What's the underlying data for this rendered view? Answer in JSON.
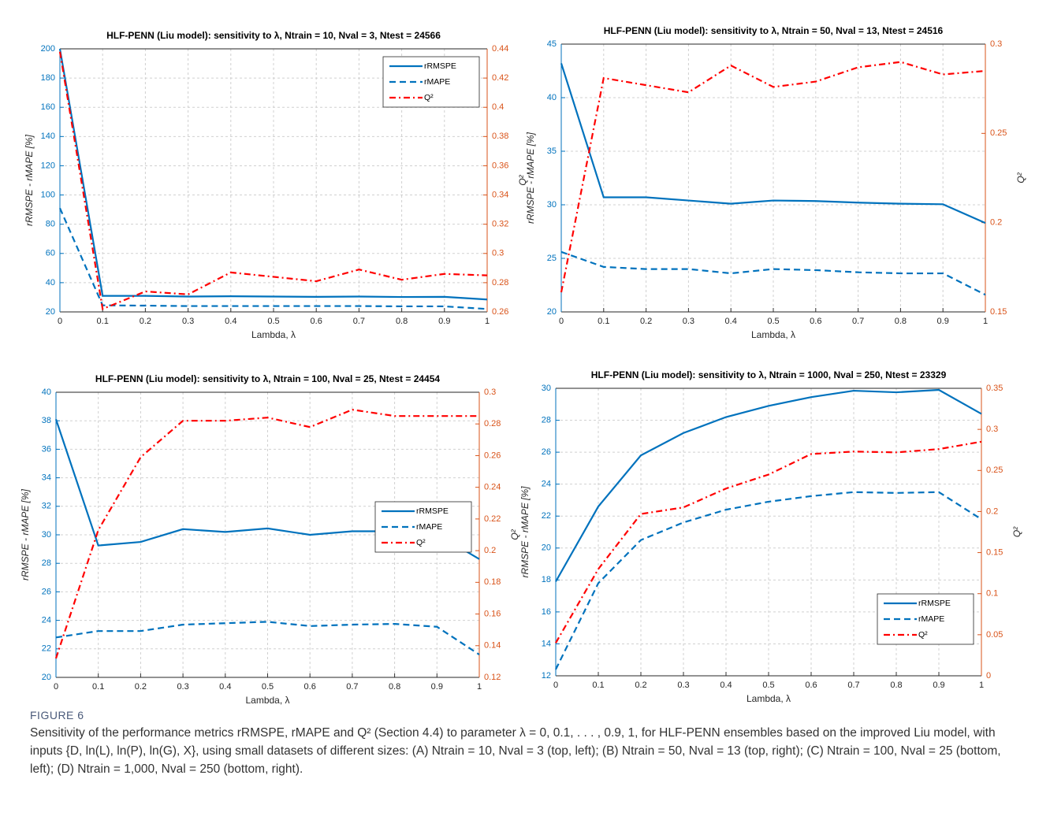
{
  "chart_data": [
    {
      "type": "line",
      "title": "HLF-PENN (Liu model): sensitivity to λ, Ntrain = 10, Nval = 3, Ntest = 24566",
      "x_label": "Lambda, λ",
      "y_label": "rRMSPE - rMAPE [%]",
      "y2_label": "Q²",
      "x": [
        0,
        0.1,
        0.2,
        0.3,
        0.4,
        0.5,
        0.6,
        0.7,
        0.8,
        0.9,
        1
      ],
      "xlim": [
        0,
        1
      ],
      "xticks": [
        0,
        0.1,
        0.2,
        0.3,
        0.4,
        0.5,
        0.6,
        0.7,
        0.8,
        0.9,
        1
      ],
      "ylim": [
        20,
        200
      ],
      "yticks": [
        20,
        40,
        60,
        80,
        100,
        120,
        140,
        160,
        180,
        200
      ],
      "y2lim": [
        0.26,
        0.44
      ],
      "y2ticks": [
        0.26,
        0.28,
        0.3,
        0.32,
        0.34,
        0.36,
        0.38,
        0.4,
        0.42,
        0.44
      ],
      "grid": true,
      "legend": "upper right",
      "series": [
        {
          "name": "rRMSPE",
          "color": "#0072bd",
          "style": "solid",
          "values": [
            200,
            31,
            31,
            30.5,
            30.7,
            30.5,
            30.3,
            30.5,
            30.2,
            30.3,
            28.5
          ]
        },
        {
          "name": "rMAPE",
          "color": "#0072bd",
          "style": "dashed",
          "values": [
            91,
            24.5,
            24.3,
            24,
            24,
            24,
            24,
            24,
            23.8,
            23.8,
            22
          ]
        },
        {
          "name": "Q²",
          "color": "#ff0000",
          "style": "dashdot",
          "axis": "y2",
          "values": [
            0.438,
            0.262,
            0.274,
            0.272,
            0.287,
            0.284,
            0.281,
            0.289,
            0.282,
            0.286,
            0.285
          ]
        }
      ]
    },
    {
      "type": "line",
      "title": "HLF-PENN (Liu model): sensitivity to λ, Ntrain = 50, Nval = 13, Ntest = 24516",
      "x_label": "Lambda, λ",
      "y_label": "rRMSPE - rMAPE [%]",
      "y2_label": "Q²",
      "x": [
        0,
        0.1,
        0.2,
        0.3,
        0.4,
        0.5,
        0.6,
        0.7,
        0.8,
        0.9,
        1
      ],
      "xlim": [
        0,
        1
      ],
      "xticks": [
        0,
        0.1,
        0.2,
        0.3,
        0.4,
        0.5,
        0.6,
        0.7,
        0.8,
        0.9,
        1
      ],
      "ylim": [
        20,
        45
      ],
      "yticks": [
        20,
        25,
        30,
        35,
        40,
        45
      ],
      "y2lim": [
        0.15,
        0.3
      ],
      "y2ticks": [
        0.15,
        0.2,
        0.25,
        0.3
      ],
      "grid": true,
      "series": [
        {
          "name": "rRMSPE",
          "color": "#0072bd",
          "style": "solid",
          "values": [
            43.2,
            30.7,
            30.7,
            30.4,
            30.1,
            30.4,
            30.35,
            30.2,
            30.1,
            30.05,
            28.3
          ]
        },
        {
          "name": "rMAPE",
          "color": "#0072bd",
          "style": "dashed",
          "values": [
            25.6,
            24.2,
            24,
            24,
            23.6,
            24,
            23.9,
            23.7,
            23.6,
            23.6,
            21.6
          ]
        },
        {
          "name": "Q²",
          "color": "#ff0000",
          "style": "dashdot",
          "axis": "y2",
          "values": [
            0.161,
            0.281,
            0.277,
            0.273,
            0.288,
            0.276,
            0.279,
            0.287,
            0.29,
            0.283,
            0.285
          ]
        }
      ]
    },
    {
      "type": "line",
      "title": "HLF-PENN (Liu model): sensitivity to λ, Ntrain = 100, Nval = 25, Ntest = 24454",
      "x_label": "Lambda, λ",
      "y_label": "rRMSPE - rMAPE [%]",
      "y2_label": "Q²",
      "x": [
        0,
        0.1,
        0.2,
        0.3,
        0.4,
        0.5,
        0.6,
        0.7,
        0.8,
        0.9,
        1
      ],
      "xlim": [
        0,
        1
      ],
      "xticks": [
        0,
        0.1,
        0.2,
        0.3,
        0.4,
        0.5,
        0.6,
        0.7,
        0.8,
        0.9,
        1
      ],
      "ylim": [
        20,
        40
      ],
      "yticks": [
        20,
        22,
        24,
        26,
        28,
        30,
        32,
        34,
        36,
        38,
        40
      ],
      "y2lim": [
        0.12,
        0.3
      ],
      "y2ticks": [
        0.12,
        0.14,
        0.16,
        0.18,
        0.2,
        0.22,
        0.24,
        0.26,
        0.28,
        0.3
      ],
      "grid": true,
      "legend": "center right",
      "series": [
        {
          "name": "rRMSPE",
          "color": "#0072bd",
          "style": "solid",
          "values": [
            38.1,
            29.25,
            29.5,
            30.4,
            30.2,
            30.45,
            30,
            30.25,
            30.25,
            30.05,
            28.3
          ]
        },
        {
          "name": "rMAPE",
          "color": "#0072bd",
          "style": "dashed",
          "values": [
            22.8,
            23.25,
            23.25,
            23.7,
            23.8,
            23.9,
            23.6,
            23.7,
            23.75,
            23.55,
            21.6
          ]
        },
        {
          "name": "Q²",
          "color": "#ff0000",
          "style": "dashdot",
          "axis": "y2",
          "values": [
            0.132,
            0.213,
            0.259,
            0.282,
            0.282,
            0.284,
            0.278,
            0.289,
            0.285,
            0.285,
            0.285
          ]
        }
      ]
    },
    {
      "type": "line",
      "title": "HLF-PENN (Liu model): sensitivity to λ, Ntrain = 1000, Nval = 250, Ntest = 23329",
      "x_label": "Lambda, λ",
      "y_label": "rRMSPE - rMAPE [%]",
      "y2_label": "Q²",
      "x": [
        0,
        0.1,
        0.2,
        0.3,
        0.4,
        0.5,
        0.6,
        0.7,
        0.8,
        0.9,
        1
      ],
      "xlim": [
        0,
        1
      ],
      "xticks": [
        0,
        0.1,
        0.2,
        0.3,
        0.4,
        0.5,
        0.6,
        0.7,
        0.8,
        0.9,
        1
      ],
      "ylim": [
        12,
        30
      ],
      "yticks": [
        12,
        14,
        16,
        18,
        20,
        22,
        24,
        26,
        28,
        30
      ],
      "y2lim": [
        0,
        0.35
      ],
      "y2ticks": [
        0,
        0.05,
        0.1,
        0.15,
        0.2,
        0.25,
        0.3,
        0.35
      ],
      "grid": true,
      "legend": "lower right",
      "series": [
        {
          "name": "rRMSPE",
          "color": "#0072bd",
          "style": "solid",
          "values": [
            17.9,
            22.6,
            25.8,
            27.2,
            28.2,
            28.9,
            29.45,
            29.85,
            29.75,
            29.9,
            28.4
          ]
        },
        {
          "name": "rMAPE",
          "color": "#0072bd",
          "style": "dashed",
          "values": [
            12.4,
            17.8,
            20.5,
            21.6,
            22.4,
            22.9,
            23.25,
            23.5,
            23.45,
            23.5,
            21.8
          ]
        },
        {
          "name": "Q²",
          "color": "#ff0000",
          "style": "dashdot",
          "axis": "y2",
          "values": [
            0.04,
            0.13,
            0.197,
            0.205,
            0.228,
            0.245,
            0.27,
            0.273,
            0.272,
            0.276,
            0.285
          ]
        }
      ]
    }
  ],
  "figure": {
    "label": "FIGURE 6",
    "caption": "Sensitivity of the performance metrics rRMSPE, rMAPE and Q² (Section 4.4) to parameter λ = 0, 0.1, . . . , 0.9, 1, for HLF-PENN ensembles based on the improved Liu model, with inputs {D, ln(L), ln(P), ln(G), X}, using small datasets of different sizes: (A) Ntrain = 10, Nval = 3 (top, left); (B) Ntrain = 50, Nval = 13 (top, right); (C) Ntrain = 100, Nval = 25 (bottom, left); (D) Ntrain = 1,000, Nval = 250 (bottom, right)."
  }
}
